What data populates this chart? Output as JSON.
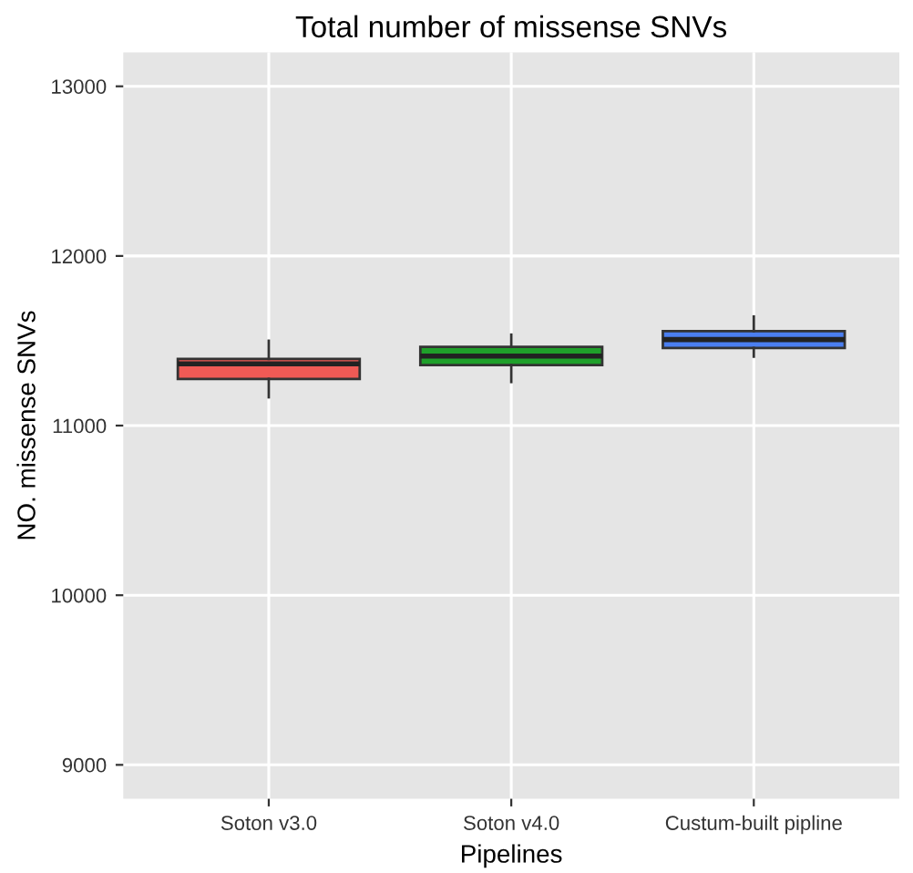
{
  "chart_data": {
    "type": "box",
    "title": "Total number of missense SNVs",
    "xlabel": "Pipelines",
    "ylabel": "NO. missense SNVs",
    "categories": [
      "Soton v3.0",
      "Soton v4.0",
      "Custum-built pipline"
    ],
    "boxes": [
      {
        "low": 11167,
        "q1": 11275,
        "median": 11364,
        "q3": 11393,
        "high": 11500
      },
      {
        "low": 11257,
        "q1": 11357,
        "median": 11410,
        "q3": 11464,
        "high": 11536
      },
      {
        "low": 11407,
        "q1": 11457,
        "median": 11507,
        "q3": 11557,
        "high": 11643
      }
    ],
    "colors": [
      "#f05a55",
      "#1fa02a",
      "#4b7ff0"
    ],
    "ylim": [
      8800,
      13200
    ],
    "yticks": [
      9000,
      10000,
      11000,
      12000,
      13000
    ],
    "grid": true,
    "legend": false
  }
}
